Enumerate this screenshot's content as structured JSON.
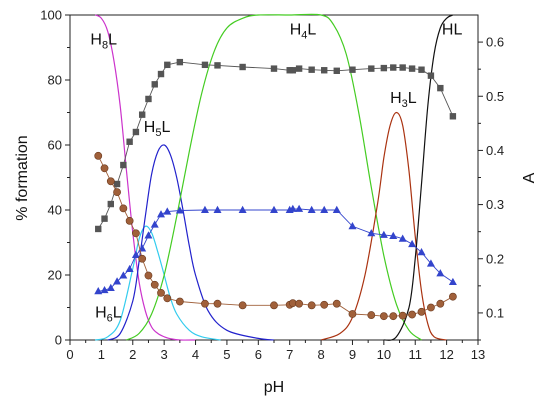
{
  "chart_data": {
    "type": "line",
    "title": "",
    "xlabel": "pH",
    "ylabel_left": "% formation",
    "ylabel_right": "A",
    "xlim": [
      0,
      13
    ],
    "ylim_left": [
      0,
      100
    ],
    "ylim_right": [
      0.05,
      0.65
    ],
    "x_ticks": [
      "0",
      "1",
      "2",
      "3",
      "4",
      "5",
      "6",
      "7",
      "8",
      "9",
      "10",
      "11",
      "12",
      "13"
    ],
    "y_ticks_left": [
      "0",
      "20",
      "40",
      "60",
      "80",
      "100"
    ],
    "y_ticks_right": [
      "0.1",
      "0.2",
      "0.3",
      "0.4",
      "0.5",
      "0.6"
    ],
    "grid": false,
    "species_labels": [
      {
        "id": "h8l",
        "base": "H",
        "sub": "8",
        "tail": "L",
        "x": 0.65,
        "y": 91
      },
      {
        "id": "h5l",
        "base": "H",
        "sub": "5",
        "tail": "L",
        "x": 2.35,
        "y": 64
      },
      {
        "id": "h4l",
        "base": "H",
        "sub": "4",
        "tail": "L",
        "x": 7.0,
        "y": 94
      },
      {
        "id": "h3l",
        "base": "H",
        "sub": "3",
        "tail": "L",
        "x": 10.2,
        "y": 73
      },
      {
        "id": "hl",
        "base": "HL",
        "sub": "",
        "tail": "",
        "x": 11.85,
        "y": 94
      },
      {
        "id": "h6l",
        "base": "H",
        "sub": "6",
        "tail": "L",
        "x": 0.8,
        "y": 7
      }
    ],
    "species_curves": [
      {
        "id": "h8l",
        "color": "#cc33cc",
        "x": [
          0.8,
          1.0,
          1.2,
          1.4,
          1.6,
          1.8,
          2.0,
          2.2,
          2.4,
          2.6,
          2.8,
          3.0,
          3.2,
          3.5,
          4.0
        ],
        "y": [
          100,
          99,
          95,
          86,
          72,
          52,
          33,
          18,
          9,
          4,
          2,
          1,
          0.4,
          0,
          0
        ]
      },
      {
        "id": "h6l",
        "color": "#33ccee",
        "x": [
          0.8,
          1.2,
          1.6,
          2.0,
          2.2,
          2.4,
          2.6,
          2.8,
          3.0,
          3.2,
          3.4,
          3.8,
          4.2,
          4.8
        ],
        "y": [
          0,
          1,
          6,
          22,
          31,
          35,
          33,
          27,
          20,
          13,
          8,
          3,
          1,
          0
        ]
      },
      {
        "id": "h5l",
        "color": "#2222cc",
        "x": [
          1.2,
          1.6,
          2.0,
          2.2,
          2.4,
          2.6,
          2.8,
          3.0,
          3.2,
          3.4,
          3.6,
          3.8,
          4.0,
          4.4,
          5.0,
          6.0,
          6.5
        ],
        "y": [
          0,
          2,
          12,
          24,
          38,
          51,
          58,
          60,
          57,
          50,
          40,
          29,
          20,
          9,
          3,
          0.5,
          0
        ]
      },
      {
        "id": "h4l",
        "color": "#44cc22",
        "x": [
          1.8,
          2.2,
          2.6,
          3.0,
          3.4,
          3.8,
          4.2,
          4.6,
          5.0,
          5.5,
          6.0,
          7.0,
          8.0,
          8.4,
          8.8,
          9.2,
          9.6,
          10.0,
          10.4,
          10.8,
          11.2
        ],
        "y": [
          0,
          2,
          8,
          20,
          38,
          58,
          76,
          89,
          96,
          99,
          100,
          100,
          100,
          97,
          88,
          70,
          47,
          26,
          11,
          3,
          0
        ]
      },
      {
        "id": "h3l",
        "color": "#aa3311",
        "x": [
          8.0,
          8.6,
          9.0,
          9.4,
          9.8,
          10.0,
          10.2,
          10.4,
          10.6,
          10.8,
          11.0,
          11.2,
          11.4,
          11.6,
          12.0
        ],
        "y": [
          0,
          2,
          7,
          20,
          42,
          56,
          66,
          70,
          66,
          52,
          32,
          15,
          5,
          1,
          0
        ]
      },
      {
        "id": "hl",
        "color": "#111111",
        "x": [
          10.0,
          10.4,
          10.8,
          11.0,
          11.2,
          11.4,
          11.6,
          11.8,
          12.0,
          12.2
        ],
        "y": [
          0,
          1,
          10,
          25,
          48,
          72,
          88,
          96,
          99,
          100
        ]
      }
    ],
    "series": [
      {
        "id": "squares",
        "marker": "square",
        "color": "#555555",
        "axis": "right",
        "x": [
          0.9,
          1.1,
          1.3,
          1.5,
          1.7,
          1.9,
          2.1,
          2.3,
          2.5,
          2.7,
          2.9,
          3.1,
          3.5,
          4.3,
          4.7,
          5.5,
          6.5,
          7.0,
          7.1,
          7.3,
          7.7,
          8.1,
          8.5,
          9.0,
          9.6,
          10.0,
          10.3,
          10.6,
          10.9,
          11.2,
          11.5,
          11.8,
          12.2
        ],
        "y": [
          0.255,
          0.274,
          0.301,
          0.338,
          0.373,
          0.416,
          0.434,
          0.466,
          0.495,
          0.522,
          0.541,
          0.558,
          0.563,
          0.558,
          0.557,
          0.554,
          0.551,
          0.548,
          0.548,
          0.551,
          0.549,
          0.548,
          0.547,
          0.549,
          0.551,
          0.552,
          0.553,
          0.553,
          0.551,
          0.549,
          0.538,
          0.515,
          0.463
        ]
      },
      {
        "id": "triangles",
        "marker": "triangle",
        "color": "#3344cc",
        "axis": "right",
        "x": [
          0.9,
          1.1,
          1.3,
          1.5,
          1.7,
          1.9,
          2.1,
          2.3,
          2.5,
          2.7,
          2.9,
          3.1,
          3.5,
          4.3,
          4.7,
          5.5,
          6.5,
          7.0,
          7.1,
          7.3,
          7.7,
          8.1,
          8.5,
          9.0,
          9.6,
          10.0,
          10.3,
          10.6,
          10.9,
          11.2,
          11.5,
          11.8,
          12.2
        ],
        "y": [
          0.14,
          0.142,
          0.146,
          0.158,
          0.169,
          0.181,
          0.207,
          0.219,
          0.243,
          0.263,
          0.282,
          0.287,
          0.289,
          0.29,
          0.29,
          0.29,
          0.29,
          0.29,
          0.292,
          0.292,
          0.29,
          0.29,
          0.29,
          0.26,
          0.247,
          0.244,
          0.242,
          0.237,
          0.227,
          0.212,
          0.191,
          0.173,
          0.157
        ]
      },
      {
        "id": "circles",
        "marker": "circle",
        "color": "#a0603a",
        "axis": "right",
        "x": [
          0.9,
          1.1,
          1.3,
          1.5,
          1.7,
          1.9,
          2.1,
          2.3,
          2.5,
          2.7,
          2.9,
          3.1,
          3.5,
          4.3,
          4.7,
          5.5,
          6.5,
          7.0,
          7.1,
          7.3,
          7.7,
          8.1,
          8.5,
          9.0,
          9.6,
          10.0,
          10.3,
          10.6,
          10.9,
          11.2,
          11.5,
          11.8,
          12.2
        ],
        "y": [
          0.39,
          0.367,
          0.343,
          0.323,
          0.293,
          0.27,
          0.247,
          0.2,
          0.169,
          0.152,
          0.137,
          0.127,
          0.121,
          0.117,
          0.117,
          0.114,
          0.114,
          0.115,
          0.118,
          0.117,
          0.114,
          0.115,
          0.117,
          0.098,
          0.096,
          0.094,
          0.094,
          0.095,
          0.097,
          0.102,
          0.11,
          0.117,
          0.13
        ]
      }
    ]
  }
}
